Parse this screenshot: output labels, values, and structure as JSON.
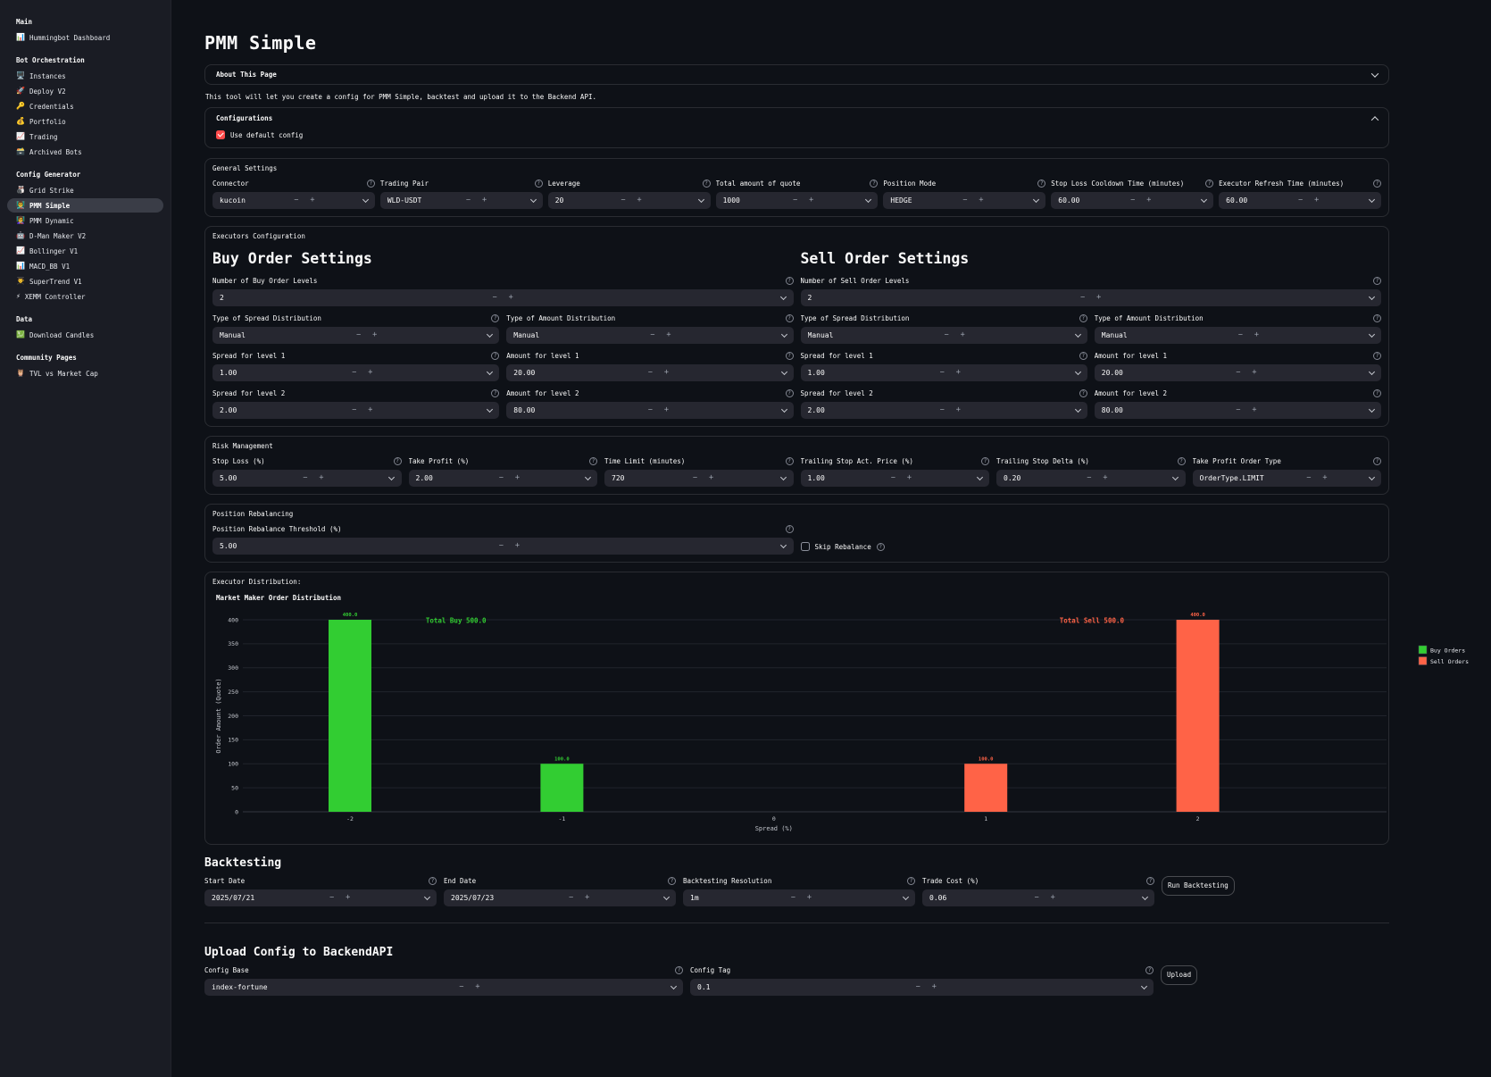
{
  "colors": {
    "accent": "#ff4b4b",
    "buy": "#32cd32",
    "sell": "#ff6347",
    "background": "#0e1117",
    "sidebar": "#1a1c24"
  },
  "sidebar": {
    "sections": [
      {
        "title": "Main",
        "items": [
          {
            "icon": "📊",
            "label": "Hummingbot Dashboard",
            "active": false
          }
        ]
      },
      {
        "title": "Bot Orchestration",
        "items": [
          {
            "icon": "🖥️",
            "label": "Instances",
            "active": false
          },
          {
            "icon": "🚀",
            "label": "Deploy V2",
            "active": false
          },
          {
            "icon": "🔑",
            "label": "Credentials",
            "active": false
          },
          {
            "icon": "💰",
            "label": "Portfolio",
            "active": false
          },
          {
            "icon": "📈",
            "label": "Trading",
            "active": false
          },
          {
            "icon": "🗃️",
            "label": "Archived Bots",
            "active": false
          }
        ]
      },
      {
        "title": "Config Generator",
        "items": [
          {
            "icon": "🎳",
            "label": "Grid Strike",
            "active": false
          },
          {
            "icon": "👨‍🏫",
            "label": "PMM Simple",
            "active": true
          },
          {
            "icon": "👩‍🏫",
            "label": "PMM Dynamic",
            "active": false
          },
          {
            "icon": "🤖",
            "label": "D-Man Maker V2",
            "active": false
          },
          {
            "icon": "📈",
            "label": "Bollinger V1",
            "active": false
          },
          {
            "icon": "📊",
            "label": "MACD_BB V1",
            "active": false
          },
          {
            "icon": "👨‍🎓",
            "label": "SuperTrend V1",
            "active": false
          },
          {
            "icon": "⚡",
            "label": "XEMM Controller",
            "active": false
          }
        ]
      },
      {
        "title": "Data",
        "items": [
          {
            "icon": "💹",
            "label": "Download Candles",
            "active": false
          }
        ]
      },
      {
        "title": "Community Pages",
        "items": [
          {
            "icon": "🦉",
            "label": "TVL vs Market Cap",
            "active": false
          }
        ]
      }
    ]
  },
  "page": {
    "title": "PMM Simple",
    "about_label": "About This Page",
    "intro": "This tool will let you create a config for PMM Simple, backtest and upload it to the Backend API.",
    "configurations_label": "Configurations",
    "use_default_label": "Use default config",
    "use_default_checked": true
  },
  "general": {
    "caption": "General Settings",
    "fields": [
      {
        "label": "Connector",
        "value": "kucoin",
        "type": "text",
        "help": true
      },
      {
        "label": "Trading Pair",
        "value": "WLD-USDT",
        "type": "text",
        "help": true
      },
      {
        "label": "Leverage",
        "value": "20",
        "type": "number",
        "help": true
      },
      {
        "label": "Total amount of quote",
        "value": "1000",
        "type": "number",
        "help": true
      },
      {
        "label": "Position Mode",
        "value": "HEDGE",
        "type": "select",
        "help": true
      },
      {
        "label": "Stop Loss Cooldown Time (minutes)",
        "value": "60.00",
        "type": "number",
        "help": true
      },
      {
        "label": "Executor Refresh Time (minutes)",
        "value": "60.00",
        "type": "number",
        "help": true
      }
    ]
  },
  "executors": {
    "caption": "Executors Configuration",
    "buy": {
      "heading": "Buy Order Settings",
      "fields": [
        {
          "label": "Number of Buy Order Levels",
          "value": "2",
          "type": "number",
          "help": true,
          "full": true
        },
        {
          "label": "Type of Spread Distribution",
          "value": "Manual",
          "type": "select"
        },
        {
          "label": "Type of Amount Distribution",
          "value": "Manual",
          "type": "select"
        },
        {
          "label": "Spread for level 1",
          "value": "1.00",
          "type": "number"
        },
        {
          "label": "Amount for level 1",
          "value": "20.00",
          "type": "number"
        },
        {
          "label": "Spread for level 2",
          "value": "2.00",
          "type": "number"
        },
        {
          "label": "Amount for level 2",
          "value": "80.00",
          "type": "number"
        }
      ]
    },
    "sell": {
      "heading": "Sell Order Settings",
      "fields": [
        {
          "label": "Number of Sell Order Levels",
          "value": "2",
          "type": "number",
          "help": true,
          "full": true
        },
        {
          "label": "Type of Spread Distribution",
          "value": "Manual",
          "type": "select"
        },
        {
          "label": "Type of Amount Distribution",
          "value": "Manual",
          "type": "select"
        },
        {
          "label": "Spread for level 1",
          "value": "1.00",
          "type": "number"
        },
        {
          "label": "Amount for level 1",
          "value": "20.00",
          "type": "number"
        },
        {
          "label": "Spread for level 2",
          "value": "2.00",
          "type": "number"
        },
        {
          "label": "Amount for level 2",
          "value": "80.00",
          "type": "number"
        }
      ]
    }
  },
  "risk": {
    "caption": "Risk Management",
    "fields": [
      {
        "label": "Stop Loss (%)",
        "value": "5.00",
        "type": "number",
        "help": true
      },
      {
        "label": "Take Profit (%)",
        "value": "2.00",
        "type": "number",
        "help": true
      },
      {
        "label": "Time Limit (minutes)",
        "value": "720",
        "type": "number",
        "help": true
      },
      {
        "label": "Trailing Stop Act. Price (%)",
        "value": "1.00",
        "type": "number",
        "help": true
      },
      {
        "label": "Trailing Stop Delta (%)",
        "value": "0.20",
        "type": "number",
        "help": true
      },
      {
        "label": "Take Profit Order Type",
        "value": "OrderType.LIMIT",
        "type": "select",
        "help": true
      }
    ]
  },
  "rebalancing": {
    "caption": "Position Rebalancing",
    "fields": [
      {
        "label": "Position Rebalance Threshold (%)",
        "value": "5.00",
        "type": "number",
        "help": true
      }
    ],
    "skip_label": "Skip Rebalance",
    "skip_checked": false,
    "skip_help": true
  },
  "distribution": {
    "caption": "Executor Distribution:"
  },
  "chart_data": {
    "type": "bar",
    "title": "Market Maker Order Distribution",
    "xlabel": "Spread (%)",
    "ylabel": "Order Amount (Quote)",
    "categories": [
      "-2",
      "-1",
      "0",
      "1",
      "2"
    ],
    "series": [
      {
        "name": "Buy Orders",
        "color": "#32cd32",
        "values": [
          400,
          100,
          0,
          0,
          0
        ]
      },
      {
        "name": "Sell Orders",
        "color": "#ff6347",
        "values": [
          0,
          0,
          0,
          100,
          400
        ]
      }
    ],
    "annotations": [
      {
        "text": "Total Buy 500.0",
        "color": "#32cd32",
        "x_index": 0.5,
        "y": 400
      },
      {
        "text": "Total Sell 500.0",
        "color": "#ff6347",
        "x_index": 3.5,
        "y": 400
      }
    ],
    "ylim": [
      0,
      400
    ],
    "ytick_step": 50,
    "grid": true,
    "legend_position": "top-right"
  },
  "backtesting": {
    "heading": "Backtesting",
    "fields": [
      {
        "label": "Start Date",
        "value": "2025/07/21",
        "type": "text"
      },
      {
        "label": "End Date",
        "value": "2025/07/23",
        "type": "text",
        "help": true
      },
      {
        "label": "Backtesting Resolution",
        "value": "1m",
        "type": "select"
      },
      {
        "label": "Trade Cost (%)",
        "value": "0.06",
        "type": "number"
      }
    ],
    "run_label": "Run Backtesting"
  },
  "upload": {
    "heading": "Upload Config to BackendAPI",
    "fields": [
      {
        "label": "Config Base",
        "value": "index-fortune",
        "type": "text"
      },
      {
        "label": "Config Tag",
        "value": "0.1",
        "type": "text"
      }
    ],
    "button_label": "Upload"
  }
}
